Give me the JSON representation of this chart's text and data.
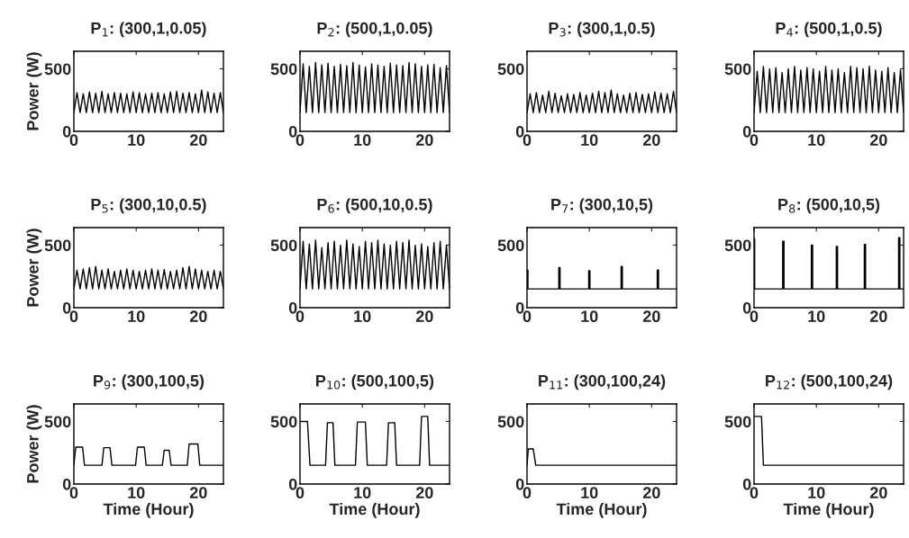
{
  "chart_data": [
    {
      "type": "line",
      "title": "P$_{1}$: (300,1,0.05)",
      "ylabel": "Power (W)",
      "xlim": [
        0,
        24
      ],
      "ylim": [
        0,
        640
      ],
      "xticks": [
        0,
        10,
        20
      ],
      "yticks": [
        0,
        500
      ],
      "grid": false,
      "series": [
        {
          "color": "#000000",
          "x": [
            0,
            0.5,
            1,
            1.5,
            2,
            2.5,
            3,
            3.5,
            4,
            4.5,
            5,
            5.5,
            6,
            6.5,
            7,
            7.5,
            8,
            8.5,
            9,
            9.5,
            10,
            10.5,
            11,
            11.5,
            12,
            12.5,
            13,
            13.5,
            14,
            14.5,
            15,
            15.5,
            16,
            16.5,
            17,
            17.5,
            18,
            18.5,
            19,
            19.5,
            20,
            20.5,
            21,
            21.5,
            22,
            22.5,
            23,
            23.5,
            24
          ],
          "values": [
            150,
            310,
            150,
            300,
            150,
            315,
            150,
            305,
            150,
            320,
            150,
            300,
            150,
            310,
            150,
            305,
            150,
            300,
            150,
            315,
            150,
            310,
            150,
            300,
            150,
            305,
            150,
            310,
            150,
            300,
            150,
            315,
            150,
            320,
            150,
            305,
            150,
            310,
            150,
            300,
            150,
            330,
            150,
            315,
            150,
            305,
            150,
            310,
            150
          ]
        }
      ]
    },
    {
      "type": "line",
      "title": "P$_{2}$: (500,1,0.05)",
      "xlim": [
        0,
        24
      ],
      "ylim": [
        0,
        640
      ],
      "xticks": [
        0,
        10,
        20
      ],
      "yticks": [
        0,
        500
      ],
      "grid": false,
      "series": [
        {
          "color": "#000000",
          "x": [
            0,
            0.5,
            1,
            1.5,
            2,
            2.5,
            3,
            3.5,
            4,
            4.5,
            5,
            5.5,
            6,
            6.5,
            7,
            7.5,
            8,
            8.5,
            9,
            9.5,
            10,
            10.5,
            11,
            11.5,
            12,
            12.5,
            13,
            13.5,
            14,
            14.5,
            15,
            15.5,
            16,
            16.5,
            17,
            17.5,
            18,
            18.5,
            19,
            19.5,
            20,
            20.5,
            21,
            21.5,
            22,
            22.5,
            23,
            23.5,
            24
          ],
          "values": [
            150,
            540,
            150,
            520,
            150,
            550,
            150,
            530,
            150,
            545,
            150,
            520,
            150,
            535,
            150,
            525,
            150,
            550,
            150,
            530,
            150,
            515,
            150,
            540,
            150,
            530,
            150,
            520,
            150,
            545,
            150,
            530,
            150,
            525,
            150,
            550,
            150,
            540,
            150,
            520,
            150,
            530,
            150,
            535,
            150,
            510,
            150,
            525,
            150
          ]
        }
      ]
    },
    {
      "type": "line",
      "title": "P$_{3}$: (300,1,0.5)",
      "xlim": [
        0,
        24
      ],
      "ylim": [
        0,
        640
      ],
      "xticks": [
        0,
        10,
        20
      ],
      "yticks": [
        0,
        500
      ],
      "grid": false,
      "series": [
        {
          "color": "#000000",
          "x": [
            0,
            0.5,
            1,
            1.5,
            2,
            2.5,
            3,
            3.5,
            4,
            4.5,
            5,
            5.5,
            6,
            6.5,
            7,
            7.5,
            8,
            8.5,
            9,
            9.5,
            10,
            10.5,
            11,
            11.5,
            12,
            12.5,
            13,
            13.5,
            14,
            14.5,
            15,
            15.5,
            16,
            16.5,
            17,
            17.5,
            18,
            18.5,
            19,
            19.5,
            20,
            20.5,
            21,
            21.5,
            22,
            22.5,
            23,
            23.5,
            24
          ],
          "values": [
            150,
            300,
            150,
            310,
            150,
            290,
            150,
            320,
            150,
            305,
            150,
            285,
            150,
            300,
            150,
            295,
            150,
            310,
            150,
            290,
            150,
            305,
            150,
            320,
            150,
            310,
            150,
            330,
            150,
            300,
            150,
            290,
            150,
            305,
            150,
            310,
            150,
            295,
            150,
            300,
            150,
            315,
            150,
            305,
            150,
            300,
            150,
            320,
            150
          ]
        }
      ]
    },
    {
      "type": "line",
      "title": "P$_{4}$: (500,1,0.5)",
      "xlim": [
        0,
        24
      ],
      "ylim": [
        0,
        640
      ],
      "xticks": [
        0,
        10,
        20
      ],
      "yticks": [
        0,
        500
      ],
      "grid": false,
      "series": [
        {
          "color": "#000000",
          "x": [
            0,
            0.5,
            1,
            1.5,
            2,
            2.5,
            3,
            3.5,
            4,
            4.5,
            5,
            5.5,
            6,
            6.5,
            7,
            7.5,
            8,
            8.5,
            9,
            9.5,
            10,
            10.5,
            11,
            11.5,
            12,
            12.5,
            13,
            13.5,
            14,
            14.5,
            15,
            15.5,
            16,
            16.5,
            17,
            17.5,
            18,
            18.5,
            19,
            19.5,
            20,
            20.5,
            21,
            21.5,
            22,
            22.5,
            23,
            23.5,
            24
          ],
          "values": [
            150,
            480,
            150,
            520,
            150,
            500,
            150,
            510,
            150,
            470,
            150,
            500,
            150,
            520,
            150,
            490,
            150,
            510,
            150,
            500,
            150,
            480,
            150,
            520,
            150,
            490,
            150,
            500,
            150,
            470,
            150,
            520,
            150,
            510,
            150,
            500,
            150,
            520,
            150,
            490,
            150,
            480,
            150,
            510,
            150,
            470,
            150,
            490,
            150
          ]
        }
      ]
    },
    {
      "type": "line",
      "title": "P$_{5}$: (300,10,0.5)",
      "ylabel": "Power (W)",
      "xlim": [
        0,
        24
      ],
      "ylim": [
        0,
        640
      ],
      "xticks": [
        0,
        10,
        20
      ],
      "yticks": [
        0,
        500
      ],
      "grid": false,
      "series": [
        {
          "color": "#000000",
          "x": [
            0,
            0.5,
            1,
            1.5,
            2,
            2.5,
            3,
            3.5,
            4,
            4.5,
            5,
            5.5,
            6,
            6.5,
            7,
            7.5,
            8,
            8.5,
            9,
            9.5,
            10,
            10.5,
            11,
            11.5,
            12,
            12.5,
            13,
            13.5,
            14,
            14.5,
            15,
            15.5,
            16,
            16.5,
            17,
            17.5,
            18,
            18.5,
            19,
            19.5,
            20,
            20.5,
            21,
            21.5,
            22,
            22.5,
            23,
            23.5,
            24
          ],
          "values": [
            150,
            300,
            150,
            310,
            150,
            320,
            150,
            330,
            150,
            300,
            150,
            310,
            150,
            290,
            150,
            300,
            150,
            310,
            150,
            300,
            150,
            290,
            150,
            300,
            150,
            310,
            150,
            300,
            150,
            305,
            150,
            290,
            150,
            300,
            150,
            320,
            150,
            330,
            150,
            310,
            150,
            300,
            150,
            290,
            150,
            300,
            150,
            290,
            150
          ]
        }
      ]
    },
    {
      "type": "line",
      "title": "P$_{6}$: (500,10,0.5)",
      "xlim": [
        0,
        24
      ],
      "ylim": [
        0,
        640
      ],
      "xticks": [
        0,
        10,
        20
      ],
      "yticks": [
        0,
        500
      ],
      "grid": false,
      "series": [
        {
          "color": "#000000",
          "x": [
            0,
            0.5,
            1,
            1.5,
            2,
            2.5,
            3,
            3.5,
            4,
            4.5,
            5,
            5.5,
            6,
            6.5,
            7,
            7.5,
            8,
            8.5,
            9,
            9.5,
            10,
            10.5,
            11,
            11.5,
            12,
            12.5,
            13,
            13.5,
            14,
            14.5,
            15,
            15.5,
            16,
            16.5,
            17,
            17.5,
            18,
            18.5,
            19,
            19.5,
            20,
            20.5,
            21,
            21.5,
            22,
            22.5,
            23,
            23.5,
            24
          ],
          "values": [
            150,
            530,
            150,
            510,
            150,
            540,
            150,
            480,
            150,
            520,
            150,
            530,
            150,
            500,
            150,
            540,
            150,
            510,
            150,
            490,
            150,
            530,
            150,
            520,
            150,
            540,
            150,
            510,
            150,
            500,
            150,
            530,
            150,
            520,
            150,
            540,
            150,
            500,
            150,
            510,
            150,
            490,
            150,
            520,
            150,
            530,
            150,
            500,
            150
          ]
        }
      ]
    },
    {
      "type": "line",
      "title": "P$_{7}$: (300,10,5)",
      "xlim": [
        0,
        24
      ],
      "ylim": [
        0,
        640
      ],
      "xticks": [
        0,
        10,
        20
      ],
      "yticks": [
        0,
        500
      ],
      "grid": false,
      "series": [
        {
          "color": "#000000",
          "x": [
            0,
            0,
            0.15,
            0.15,
            5.1,
            5.1,
            5.3,
            5.3,
            9.9,
            9.9,
            10.1,
            10.1,
            15.1,
            15.1,
            15.3,
            15.3,
            20.9,
            20.9,
            21.1,
            21.1,
            24
          ],
          "values": [
            150,
            300,
            300,
            150,
            150,
            320,
            320,
            150,
            150,
            295,
            295,
            150,
            150,
            330,
            330,
            150,
            150,
            300,
            300,
            150,
            150
          ]
        }
      ]
    },
    {
      "type": "line",
      "title": "P$_{8}$: (500,10,5)",
      "xlim": [
        0,
        24
      ],
      "ylim": [
        0,
        640
      ],
      "xticks": [
        0,
        10,
        20
      ],
      "yticks": [
        0,
        500
      ],
      "grid": false,
      "series": [
        {
          "color": "#000000",
          "x": [
            0,
            0,
            0.1,
            0.1,
            4.6,
            4.6,
            4.8,
            4.8,
            9.2,
            9.2,
            9.4,
            9.4,
            13.2,
            13.2,
            13.4,
            13.4,
            17.7,
            17.7,
            17.9,
            17.9,
            23.2,
            23.2,
            23.4,
            23.4,
            24
          ],
          "values": [
            150,
            550,
            550,
            150,
            150,
            530,
            530,
            150,
            150,
            500,
            500,
            150,
            150,
            490,
            490,
            150,
            150,
            505,
            505,
            150,
            150,
            560,
            560,
            150,
            150
          ]
        }
      ]
    },
    {
      "type": "line",
      "title": "P$_{9}$: (300,100,5)",
      "ylabel": "Power (W)",
      "xlabel": "Time (Hour)",
      "xlim": [
        0,
        24
      ],
      "ylim": [
        0,
        640
      ],
      "xticks": [
        0,
        10,
        20
      ],
      "yticks": [
        0,
        500
      ],
      "grid": false,
      "series": [
        {
          "color": "#000000",
          "x": [
            0,
            0.3,
            1.4,
            1.7,
            4.5,
            4.8,
            5.8,
            6.1,
            9.9,
            10.2,
            11.3,
            11.6,
            14.2,
            14.5,
            15.3,
            15.6,
            18.2,
            18.5,
            19.9,
            20.2,
            24
          ],
          "values": [
            150,
            295,
            295,
            150,
            150,
            290,
            290,
            150,
            150,
            295,
            295,
            150,
            150,
            270,
            270,
            150,
            150,
            320,
            320,
            150,
            150
          ]
        }
      ]
    },
    {
      "type": "line",
      "title": "P$_{10}$: (500,100,5)",
      "xlabel": "Time (Hour)",
      "xlim": [
        0,
        24
      ],
      "ylim": [
        0,
        640
      ],
      "xticks": [
        0,
        10,
        20
      ],
      "yticks": [
        0,
        500
      ],
      "grid": false,
      "series": [
        {
          "color": "#000000",
          "x": [
            0,
            1.2,
            1.6,
            4.1,
            4.4,
            5.3,
            5.6,
            8.9,
            9.2,
            10.5,
            10.8,
            13.9,
            14.2,
            15.2,
            15.5,
            19.2,
            19.5,
            20.5,
            20.8,
            24
          ],
          "values": [
            500,
            500,
            150,
            150,
            490,
            490,
            150,
            150,
            495,
            495,
            150,
            150,
            490,
            490,
            150,
            150,
            540,
            540,
            150,
            150
          ]
        }
      ]
    },
    {
      "type": "line",
      "title": "P$_{11}$: (300,100,24)",
      "xlabel": "Time (Hour)",
      "xlim": [
        0,
        24
      ],
      "ylim": [
        0,
        640
      ],
      "xticks": [
        0,
        10,
        20
      ],
      "yticks": [
        0,
        500
      ],
      "grid": false,
      "series": [
        {
          "color": "#000000",
          "x": [
            0,
            0.2,
            1.0,
            1.4,
            24
          ],
          "values": [
            150,
            280,
            280,
            150,
            150
          ]
        }
      ]
    },
    {
      "type": "line",
      "title": "P$_{12}$: (500,100,24)",
      "xlabel": "Time (Hour)",
      "xlim": [
        0,
        24
      ],
      "ylim": [
        0,
        640
      ],
      "xticks": [
        0,
        10,
        20
      ],
      "yticks": [
        0,
        500
      ],
      "grid": false,
      "series": [
        {
          "color": "#000000",
          "x": [
            0,
            1.2,
            1.5,
            24
          ],
          "values": [
            540,
            540,
            150,
            150
          ]
        }
      ]
    }
  ]
}
